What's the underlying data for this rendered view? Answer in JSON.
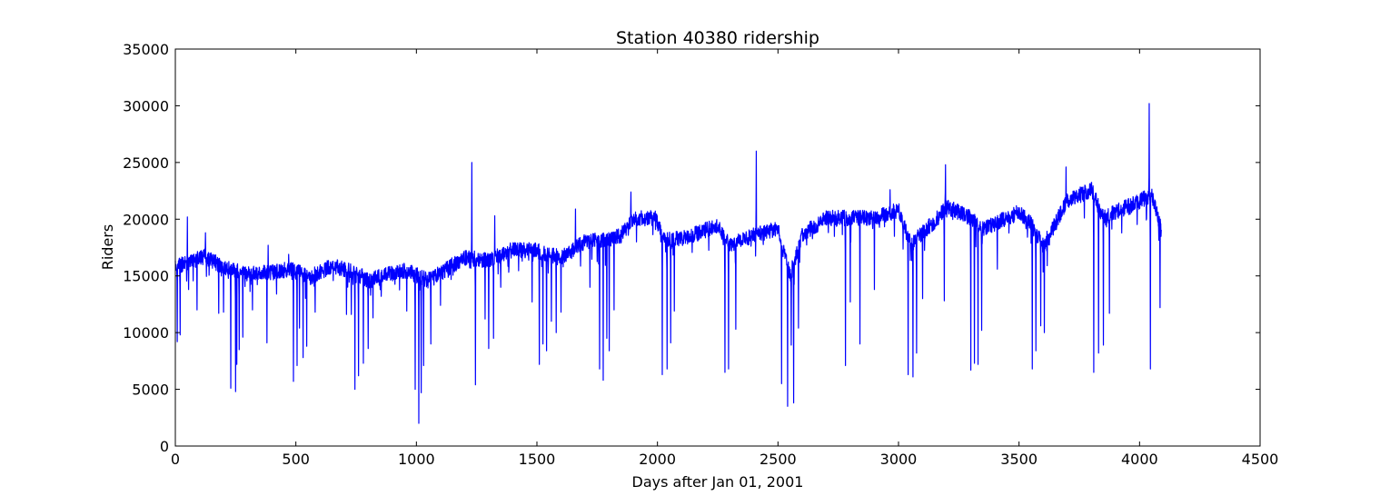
{
  "chart_data": {
    "type": "line",
    "title": "Station 40380 ridership",
    "xlabel": "Days after Jan 01, 2001",
    "ylabel": "Riders",
    "xlim": [
      0,
      4500
    ],
    "ylim": [
      0,
      35000
    ],
    "xticks": [
      0,
      500,
      1000,
      1500,
      2000,
      2500,
      3000,
      3500,
      4000,
      4500
    ],
    "yticks": [
      0,
      5000,
      10000,
      15000,
      20000,
      25000,
      30000,
      35000
    ],
    "grid": false,
    "line_color": "#0000ff",
    "series": [
      {
        "baseline": [
          [
            0,
            15800
          ],
          [
            120,
            16700
          ],
          [
            200,
            15800
          ],
          [
            300,
            15100
          ],
          [
            400,
            15300
          ],
          [
            480,
            15600
          ],
          [
            560,
            14900
          ],
          [
            650,
            15900
          ],
          [
            740,
            15400
          ],
          [
            800,
            14600
          ],
          [
            950,
            15500
          ],
          [
            1050,
            14600
          ],
          [
            1200,
            16600
          ],
          [
            1300,
            16400
          ],
          [
            1400,
            17300
          ],
          [
            1500,
            17200
          ],
          [
            1600,
            16600
          ],
          [
            1700,
            18000
          ],
          [
            1790,
            18200
          ],
          [
            1850,
            18600
          ],
          [
            1900,
            20100
          ],
          [
            1990,
            20100
          ],
          [
            2030,
            18100
          ],
          [
            2150,
            18600
          ],
          [
            2250,
            19500
          ],
          [
            2300,
            17800
          ],
          [
            2400,
            18600
          ],
          [
            2500,
            19100
          ],
          [
            2550,
            15000
          ],
          [
            2600,
            18600
          ],
          [
            2700,
            20100
          ],
          [
            2800,
            20100
          ],
          [
            2900,
            20100
          ],
          [
            3000,
            20800
          ],
          [
            3050,
            17800
          ],
          [
            3150,
            19800
          ],
          [
            3200,
            21100
          ],
          [
            3300,
            20100
          ],
          [
            3350,
            19100
          ],
          [
            3450,
            20100
          ],
          [
            3500,
            20600
          ],
          [
            3550,
            19600
          ],
          [
            3600,
            17600
          ],
          [
            3700,
            21600
          ],
          [
            3800,
            22600
          ],
          [
            3850,
            20100
          ],
          [
            3950,
            21100
          ],
          [
            4050,
            22100
          ],
          [
            4090,
            19100
          ]
        ],
        "dips": [
          [
            8,
            9200
          ],
          [
            20,
            9800
          ],
          [
            55,
            13800
          ],
          [
            90,
            12000
          ],
          [
            180,
            11700
          ],
          [
            200,
            11800
          ],
          [
            230,
            5100
          ],
          [
            250,
            4800
          ],
          [
            255,
            7200
          ],
          [
            265,
            8500
          ],
          [
            280,
            9600
          ],
          [
            320,
            12000
          ],
          [
            380,
            9100
          ],
          [
            420,
            13400
          ],
          [
            470,
            11800
          ],
          [
            490,
            5700
          ],
          [
            505,
            7100
          ],
          [
            515,
            10400
          ],
          [
            530,
            7800
          ],
          [
            545,
            8800
          ],
          [
            580,
            11800
          ],
          [
            710,
            11600
          ],
          [
            730,
            11600
          ],
          [
            745,
            5000
          ],
          [
            760,
            6200
          ],
          [
            780,
            7300
          ],
          [
            800,
            8600
          ],
          [
            820,
            11300
          ],
          [
            960,
            11900
          ],
          [
            995,
            5000
          ],
          [
            1010,
            2000
          ],
          [
            1020,
            4700
          ],
          [
            1030,
            7100
          ],
          [
            1060,
            9000
          ],
          [
            1100,
            12400
          ],
          [
            1245,
            5400
          ],
          [
            1285,
            11200
          ],
          [
            1300,
            8600
          ],
          [
            1320,
            9500
          ],
          [
            1350,
            14000
          ],
          [
            1480,
            12700
          ],
          [
            1510,
            7200
          ],
          [
            1525,
            9000
          ],
          [
            1540,
            8400
          ],
          [
            1560,
            11000
          ],
          [
            1580,
            10000
          ],
          [
            1600,
            11800
          ],
          [
            1720,
            14000
          ],
          [
            1760,
            6800
          ],
          [
            1775,
            5800
          ],
          [
            1790,
            9500
          ],
          [
            1800,
            8400
          ],
          [
            1820,
            12000
          ],
          [
            2020,
            6300
          ],
          [
            2040,
            6800
          ],
          [
            2055,
            9100
          ],
          [
            2070,
            11900
          ],
          [
            2280,
            6500
          ],
          [
            2295,
            6800
          ],
          [
            2325,
            10300
          ],
          [
            2515,
            5500
          ],
          [
            2540,
            3500
          ],
          [
            2555,
            8900
          ],
          [
            2565,
            3800
          ],
          [
            2585,
            10400
          ],
          [
            2780,
            7100
          ],
          [
            2800,
            12700
          ],
          [
            2840,
            9000
          ],
          [
            2900,
            13800
          ],
          [
            3040,
            6300
          ],
          [
            3060,
            6100
          ],
          [
            3075,
            8200
          ],
          [
            3100,
            13000
          ],
          [
            3190,
            12800
          ],
          [
            3300,
            6700
          ],
          [
            3315,
            7300
          ],
          [
            3330,
            7200
          ],
          [
            3345,
            10200
          ],
          [
            3410,
            15600
          ],
          [
            3555,
            6800
          ],
          [
            3570,
            8400
          ],
          [
            3590,
            10600
          ],
          [
            3605,
            10000
          ],
          [
            3810,
            6500
          ],
          [
            3830,
            8200
          ],
          [
            3850,
            8900
          ],
          [
            3875,
            11700
          ],
          [
            4045,
            6800
          ],
          [
            4085,
            12200
          ]
        ],
        "spikes": [
          [
            50,
            20200
          ],
          [
            125,
            18800
          ],
          [
            385,
            17700
          ],
          [
            470,
            16900
          ],
          [
            1230,
            25000
          ],
          [
            1325,
            20300
          ],
          [
            1660,
            20900
          ],
          [
            1890,
            22400
          ],
          [
            2410,
            26000
          ],
          [
            2965,
            22600
          ],
          [
            3195,
            24800
          ],
          [
            3695,
            24600
          ],
          [
            4040,
            30200
          ]
        ]
      }
    ]
  }
}
